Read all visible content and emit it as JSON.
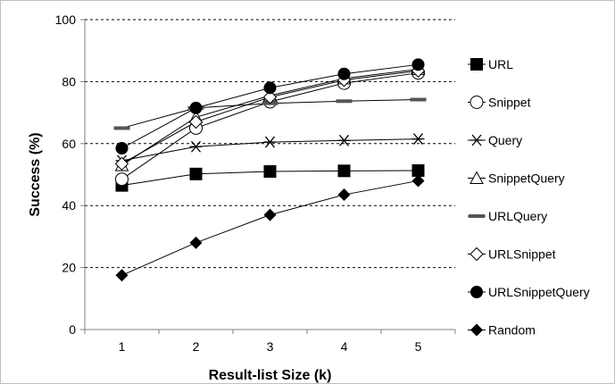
{
  "chart_data": {
    "type": "line",
    "xlabel": "Result-list Size (k)",
    "ylabel": "Success (%)",
    "x": [
      1,
      2,
      3,
      4,
      5
    ],
    "ylim": [
      0,
      100
    ],
    "yticks": [
      0,
      20,
      40,
      60,
      80,
      100
    ],
    "grid": "horizontal dashed",
    "legend_position": "right",
    "series": [
      {
        "name": "URL",
        "marker": "filled-square",
        "values": [
          46.5,
          50.2,
          51.0,
          51.2,
          51.3
        ]
      },
      {
        "name": "Snippet",
        "marker": "open-circle",
        "values": [
          48.5,
          65.0,
          73.5,
          79.5,
          82.8
        ]
      },
      {
        "name": "Query",
        "marker": "asterisk",
        "values": [
          54.5,
          59.0,
          60.5,
          61.0,
          61.5
        ]
      },
      {
        "name": "SnippetQuery",
        "marker": "open-triangle",
        "values": [
          53.0,
          68.5,
          75.5,
          81.0,
          84.0
        ]
      },
      {
        "name": "URLQuery",
        "marker": "dash",
        "values": [
          65.0,
          71.5,
          73.0,
          73.7,
          74.2
        ]
      },
      {
        "name": "URLSnippet",
        "marker": "open-diamond",
        "values": [
          53.5,
          67.0,
          75.0,
          80.5,
          83.5
        ]
      },
      {
        "name": "URLSnippetQuery",
        "marker": "filled-circle",
        "values": [
          58.5,
          71.5,
          78.0,
          82.5,
          85.5
        ]
      },
      {
        "name": "Random",
        "marker": "filled-diamond",
        "values": [
          17.5,
          28.0,
          37.0,
          43.5,
          48.0
        ]
      }
    ]
  }
}
